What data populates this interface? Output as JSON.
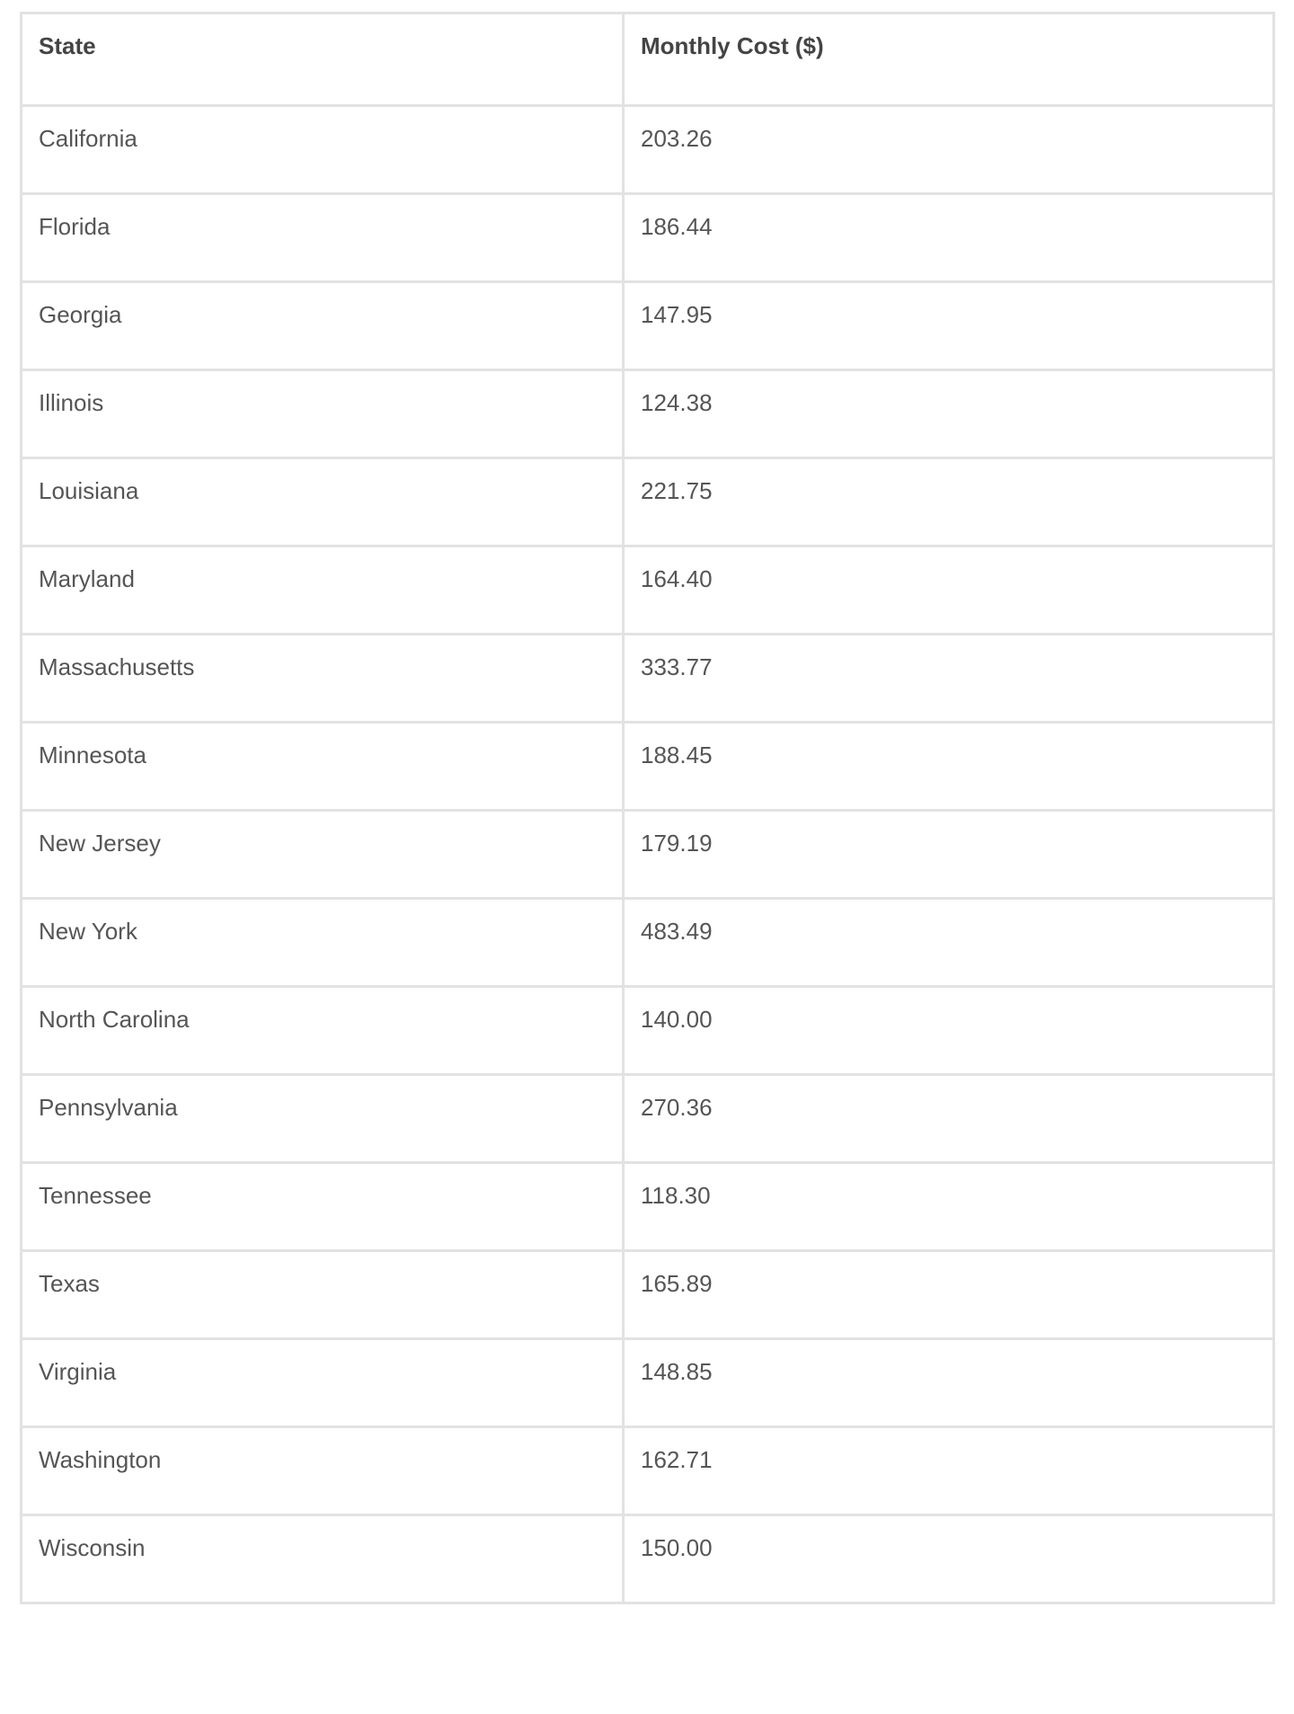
{
  "table": {
    "headers": [
      "State",
      "Monthly Cost ($)"
    ],
    "rows": [
      [
        "California",
        "203.26"
      ],
      [
        "Florida",
        "186.44"
      ],
      [
        "Georgia",
        "147.95"
      ],
      [
        "Illinois",
        "124.38"
      ],
      [
        "Louisiana",
        "221.75"
      ],
      [
        "Maryland",
        "164.40"
      ],
      [
        "Massachusetts",
        "333.77"
      ],
      [
        "Minnesota",
        "188.45"
      ],
      [
        "New Jersey",
        "179.19"
      ],
      [
        "New York",
        "483.49"
      ],
      [
        "North Carolina",
        "140.00"
      ],
      [
        "Pennsylvania",
        "270.36"
      ],
      [
        "Tennessee",
        "118.30"
      ],
      [
        "Texas",
        "165.89"
      ],
      [
        "Virginia",
        "148.85"
      ],
      [
        "Washington",
        "162.71"
      ],
      [
        "Wisconsin",
        "150.00"
      ]
    ]
  }
}
